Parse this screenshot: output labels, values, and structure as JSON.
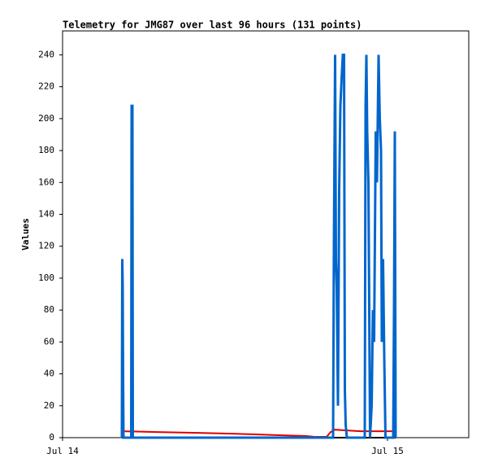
{
  "chart_data": {
    "type": "line",
    "title": "Telemetry for JMG87 over last 96 hours (131 points)",
    "y_label": "Values",
    "xlim": [
      0,
      30
    ],
    "xticks": [
      {
        "value": 0,
        "label": "Jul 14"
      },
      {
        "value": 24,
        "label": "Jul 15"
      }
    ],
    "ylim": [
      0,
      255
    ],
    "yticks": [
      0,
      20,
      40,
      60,
      80,
      100,
      120,
      140,
      160,
      180,
      200,
      220,
      240
    ],
    "series": [
      {
        "color": "#0066cc",
        "x": [
          4.38,
          4.41,
          4.44,
          4.47,
          4.5,
          5.07,
          5.1,
          5.16,
          5.19,
          19.98,
          20.04,
          20.13,
          20.19,
          20.25,
          20.34,
          20.43,
          20.52,
          20.61,
          20.7,
          20.79,
          20.85,
          20.91,
          21.0,
          22.32,
          22.38,
          22.44,
          22.5,
          22.59,
          22.71,
          22.83,
          22.92,
          23.01,
          23.13,
          23.22,
          23.34,
          23.43,
          23.52,
          23.58,
          23.67,
          23.76,
          23.85,
          24.42,
          24.48,
          24.54,
          24.6
        ],
        "values": [
          0,
          112,
          96,
          40,
          0,
          0,
          208,
          208,
          0,
          0,
          120,
          240,
          112,
          94,
          20,
          156,
          208,
          225,
          240,
          240,
          30,
          8,
          0,
          0,
          208,
          240,
          192,
          160,
          0,
          20,
          80,
          60,
          192,
          160,
          240,
          200,
          180,
          60,
          112,
          50,
          0,
          0,
          80,
          192,
          0
        ]
      },
      {
        "color": "#e00000",
        "x": [
          4.38,
          5.5,
          7,
          10,
          12.5,
          14.5,
          16,
          18,
          18.6,
          19.5,
          19.8,
          20.1,
          21,
          22,
          24.6
        ],
        "values": [
          4,
          3.8,
          3.5,
          3,
          2.5,
          2,
          1.5,
          1,
          0.5,
          0.5,
          3.5,
          5,
          4.5,
          4,
          4
        ]
      },
      {
        "color": "#000000",
        "x": [
          4.38,
          24.6
        ],
        "values": [
          0,
          0
        ]
      }
    ]
  }
}
